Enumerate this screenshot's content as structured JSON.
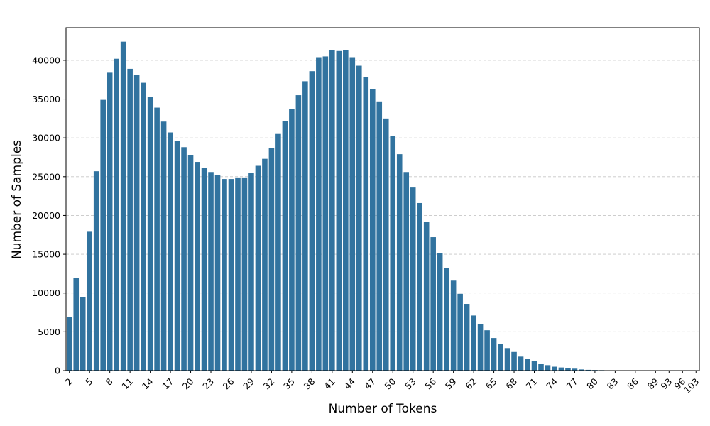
{
  "chart_data": {
    "type": "bar",
    "xlabel": "Number of Tokens",
    "ylabel": "Number of Samples",
    "ylim": [
      0,
      44200
    ],
    "y_ticks": [
      0,
      5000,
      10000,
      15000,
      20000,
      25000,
      30000,
      35000,
      40000
    ],
    "grid": "horizontal dashed",
    "bar_color": "#31739f",
    "grid_color": "#c6c6c6",
    "categories": [
      "2",
      "3",
      "4",
      "5",
      "6",
      "7",
      "8",
      "9",
      "10",
      "11",
      "12",
      "13",
      "14",
      "15",
      "16",
      "17",
      "18",
      "19",
      "20",
      "21",
      "22",
      "23",
      "24",
      "25",
      "26",
      "27",
      "28",
      "29",
      "30",
      "31",
      "32",
      "33",
      "34",
      "35",
      "36",
      "37",
      "38",
      "39",
      "40",
      "41",
      "42",
      "43",
      "44",
      "45",
      "46",
      "47",
      "48",
      "49",
      "50",
      "51",
      "52",
      "53",
      "54",
      "55",
      "56",
      "57",
      "58",
      "59",
      "60",
      "61",
      "62",
      "63",
      "64",
      "65",
      "66",
      "67",
      "68",
      "69",
      "70",
      "71",
      "72",
      "73",
      "74",
      "75",
      "76",
      "77",
      "78",
      "79",
      "80",
      "81",
      "82",
      "83",
      "84",
      "85",
      "86",
      "87",
      "88",
      "89",
      "91",
      "93",
      "94",
      "96",
      "99",
      "103"
    ],
    "tick_labels": [
      "2",
      "5",
      "8",
      "11",
      "14",
      "17",
      "20",
      "23",
      "26",
      "29",
      "32",
      "35",
      "38",
      "41",
      "44",
      "47",
      "50",
      "53",
      "56",
      "59",
      "62",
      "65",
      "68",
      "71",
      "74",
      "77",
      "80",
      "83",
      "86",
      "89",
      "93",
      "96",
      "103"
    ],
    "values": [
      6900,
      11900,
      9500,
      17900,
      25700,
      34900,
      38400,
      40200,
      42400,
      38900,
      38100,
      37100,
      35300,
      33900,
      32100,
      30700,
      29600,
      28800,
      27800,
      26900,
      26100,
      25600,
      25200,
      24700,
      24700,
      24900,
      24900,
      25500,
      26400,
      27300,
      28700,
      30500,
      32200,
      33700,
      35500,
      37300,
      38600,
      40400,
      40500,
      41300,
      41200,
      41300,
      40400,
      39300,
      37800,
      36300,
      34700,
      32500,
      30200,
      27900,
      25600,
      23600,
      21600,
      19200,
      17200,
      15100,
      13200,
      11600,
      9900,
      8600,
      7100,
      6000,
      5200,
      4200,
      3400,
      2900,
      2400,
      1800,
      1500,
      1200,
      900,
      700,
      500,
      400,
      300,
      250,
      150,
      100,
      80,
      60,
      40,
      30,
      20,
      15,
      10,
      8,
      6,
      5,
      4,
      3,
      2,
      2,
      1,
      1
    ]
  }
}
